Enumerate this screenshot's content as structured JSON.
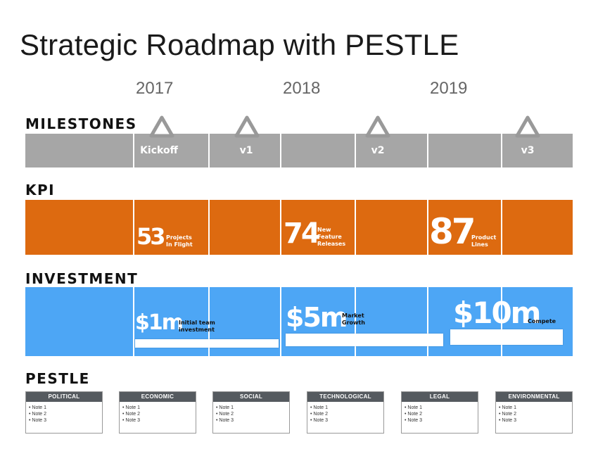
{
  "title": "Strategic Roadmap with PESTLE",
  "years": [
    "2017",
    "2018",
    "2019"
  ],
  "sections": {
    "milestones": "MILESTONES",
    "kpi": "KPI",
    "investment": "INVESTMENT",
    "pestle": "PESTLE"
  },
  "colors": {
    "milestones_band": "#a6a6a6",
    "kpi_band": "#dd6a10",
    "investment_band": "#4da6f5",
    "pestle_header": "#555a5f"
  },
  "milestones": [
    {
      "label": "Kickoff"
    },
    {
      "label": "v1"
    },
    {
      "label": "v2"
    },
    {
      "label": "v3"
    }
  ],
  "kpis": [
    {
      "value": "53",
      "desc_line1": "Projects",
      "desc_line2": "In Flight",
      "desc_line3": ""
    },
    {
      "value": "74",
      "desc_line1": "New",
      "desc_line2": "Feature",
      "desc_line3": "Releases"
    },
    {
      "value": "87",
      "desc_line1": "Product",
      "desc_line2": "Lines",
      "desc_line3": ""
    }
  ],
  "investments": [
    {
      "value": "$1m",
      "desc_line1": "Initial team",
      "desc_line2": "investment"
    },
    {
      "value": "$5m",
      "desc_line1": "Market",
      "desc_line2": "Growth"
    },
    {
      "value": "$10m",
      "desc_line1": "Compete",
      "desc_line2": ""
    }
  ],
  "pestle": [
    {
      "header": "POLITICAL",
      "notes": [
        "• Note 1",
        "• Note 2",
        "• Note 3"
      ]
    },
    {
      "header": "ECONOMIC",
      "notes": [
        "• Note 1",
        "• Note 2",
        "• Note 3"
      ]
    },
    {
      "header": "SOCIAL",
      "notes": [
        "• Note 1",
        "• Note 2",
        "• Note 3"
      ]
    },
    {
      "header": "TECHNOLOGICAL",
      "notes": [
        "• Note 1",
        "• Note 2",
        "• Note 3"
      ]
    },
    {
      "header": "LEGAL",
      "notes": [
        "• Note 1",
        "• Note 2",
        "• Note 3"
      ]
    },
    {
      "header": "ENVIRONMENTAL",
      "notes": [
        "• Note 1",
        "• Note 2",
        "• Note 3"
      ]
    }
  ]
}
